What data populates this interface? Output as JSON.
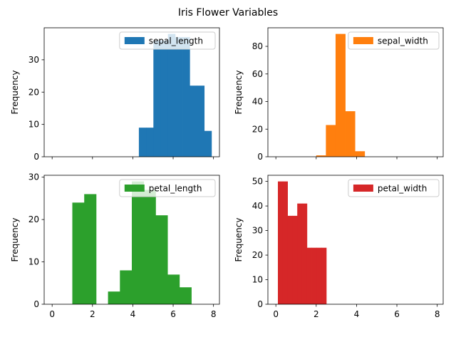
{
  "chart_data": {
    "type": "bar",
    "title": "Iris Flower Variables",
    "ylabel": "Frequency",
    "shared_xlim": [
      -0.395,
      8.295
    ],
    "x_ticks": [
      0,
      2,
      4,
      6,
      8
    ],
    "legend_position": "upper right",
    "panels": [
      {
        "series_name": "sepal_length",
        "color": "#1f77b4",
        "bin_width": 0.36,
        "bin_starts": [
          4.3,
          4.66,
          5.02,
          5.38,
          5.74,
          6.1,
          6.46,
          6.82,
          7.18,
          7.54
        ],
        "values": [
          9,
          9,
          36,
          36,
          38,
          37,
          37,
          22,
          22,
          8
        ],
        "ylim": [
          0,
          39.9
        ],
        "y_ticks": [
          0,
          10,
          20,
          30
        ]
      },
      {
        "series_name": "sepal_width",
        "color": "#ff7f0e",
        "bin_width": 0.24,
        "bin_starts": [
          2.0,
          2.24,
          2.48,
          2.72,
          2.96,
          3.2,
          3.44,
          3.68,
          3.92,
          4.16
        ],
        "values": [
          1,
          1,
          23,
          23,
          89,
          89,
          33,
          33,
          4,
          4
        ],
        "ylim": [
          0,
          93.45
        ],
        "y_ticks": [
          0,
          20,
          40,
          60,
          80
        ]
      },
      {
        "series_name": "petal_length",
        "color": "#2ca02c",
        "bin_width": 0.59,
        "bin_starts": [
          1.0,
          1.59,
          2.18,
          2.77,
          3.36,
          3.95,
          4.54,
          5.13,
          5.72,
          6.31
        ],
        "values": [
          24,
          26,
          0,
          3,
          8,
          29,
          27,
          21,
          7,
          4
        ],
        "ylim": [
          0,
          30.45
        ],
        "y_ticks": [
          0,
          10,
          20,
          30
        ]
      },
      {
        "series_name": "petal_width",
        "color": "#d62728",
        "bin_width": 0.24,
        "bin_starts": [
          0.1,
          0.34,
          0.58,
          0.82,
          1.06,
          1.3,
          1.54,
          1.78,
          2.02,
          2.26
        ],
        "values": [
          50,
          50,
          36,
          36,
          41,
          41,
          23,
          23,
          23,
          23
        ],
        "ylim": [
          0,
          52.5
        ],
        "y_ticks": [
          0,
          10,
          20,
          30,
          40,
          50
        ]
      }
    ]
  }
}
